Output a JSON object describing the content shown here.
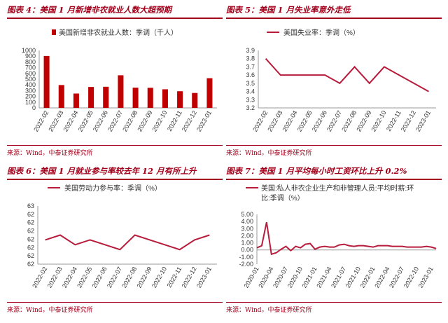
{
  "panels": [
    {
      "title": "图表 4：美国 1 月新增非农就业人数大超预期",
      "source": "来源：Wind，中泰证券研究所"
    },
    {
      "title": "图表 5：美国 1 月失业率意外走低",
      "source": "来源：Wind，中泰证券研究所"
    },
    {
      "title": "图表 6：美国 1 月就业参与率较去年 12 月有所上升",
      "source": "来源：Wind，中泰证券研究所"
    },
    {
      "title": "图表 7：美国 1 月平均每小时工资环比上升 0.2%",
      "source": "来源：Wind，中泰证券研究所"
    }
  ],
  "colors": {
    "accent": "#a3001b",
    "bar": "#c00000",
    "line": "#b81c3c",
    "axis": "#999999"
  },
  "chart_data": [
    {
      "type": "bar",
      "legend": "美国新增非农就业人数：季调（千人）",
      "categories": [
        "2022-02",
        "2022-03",
        "2022-04",
        "2022-05",
        "2022-06",
        "2022-07",
        "2022-08",
        "2022-09",
        "2022-10",
        "2022-11",
        "2022-12",
        "2023-01"
      ],
      "values": [
        904,
        398,
        250,
        364,
        368,
        568,
        352,
        350,
        324,
        290,
        260,
        517
      ],
      "yticks": [
        "0",
        "100",
        "200",
        "300",
        "400",
        "500",
        "600",
        "700",
        "800",
        "900",
        "1000"
      ],
      "ylim": [
        0,
        1000
      ]
    },
    {
      "type": "line",
      "legend": "美国失业率：季调（%）",
      "categories": [
        "2022-02",
        "2022-03",
        "2022-04",
        "2022-05",
        "2022-06",
        "2022-07",
        "2022-08",
        "2022-09",
        "2022-10",
        "2022-11",
        "2022-12",
        "2023-01"
      ],
      "values": [
        3.8,
        3.6,
        3.6,
        3.6,
        3.6,
        3.5,
        3.7,
        3.5,
        3.7,
        3.6,
        3.5,
        3.4
      ],
      "yticks": [
        "3.2",
        "3.3",
        "3.4",
        "3.5",
        "3.6",
        "3.7",
        "3.8",
        "3.9"
      ],
      "ylim": [
        3.2,
        3.9
      ]
    },
    {
      "type": "line",
      "legend": "美国劳动力参与率：季调（%）",
      "categories": [
        "2022-02",
        "2022-03",
        "2022-04",
        "2022-05",
        "2022-06",
        "2022-07",
        "2022-08",
        "2022-09",
        "2022-10",
        "2022-11",
        "2022-12",
        "2023-01"
      ],
      "values": [
        62.3,
        62.4,
        62.2,
        62.3,
        62.2,
        62.1,
        62.4,
        62.3,
        62.2,
        62.1,
        62.3,
        62.4
      ],
      "yticks": [
        "62",
        "62",
        "62",
        "62",
        "62",
        "62",
        "62",
        "63"
      ],
      "ylim": [
        61.8,
        63.0
      ]
    },
    {
      "type": "line",
      "legend": "美国:私人非农企业生产和非管理人员:平均时薪:环比:季调（%）",
      "legend_lines": [
        "美国:私人非农企业生产和非管理人员:平均时薪:环",
        "比:季调（%）"
      ],
      "x_labels": [
        "2020-01",
        "2020-04",
        "2020-07",
        "2020-10",
        "2021-01",
        "2021-04",
        "2021-07",
        "2021-10",
        "2022-01",
        "2022-04",
        "2022-07",
        "2022-10",
        "2023-01"
      ],
      "values": [
        0.3,
        0.6,
        3.9,
        -0.6,
        -0.4,
        0.1,
        0.5,
        -0.1,
        0.5,
        0.3,
        0.8,
        0.9,
        0.1,
        0.4,
        0.5,
        0.4,
        0.4,
        0.7,
        0.8,
        0.6,
        0.5,
        0.6,
        0.6,
        0.5,
        0.4,
        0.6,
        0.6,
        0.6,
        0.5,
        0.5,
        0.5,
        0.4,
        0.4,
        0.4,
        0.4,
        0.5,
        0.4,
        0.2
      ],
      "yticks": [
        "-2.00",
        "-1.00",
        "0.00",
        "1.00",
        "2.00",
        "3.00",
        "4.00",
        "5.00"
      ],
      "ylim": [
        -2,
        5
      ]
    }
  ]
}
